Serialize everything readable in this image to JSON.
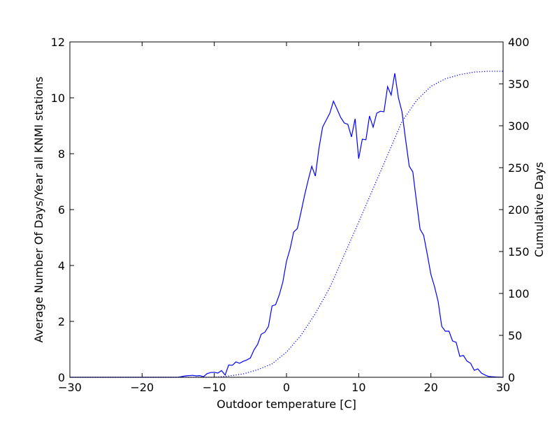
{
  "chart_data": {
    "type": "line",
    "xlabel": "Outdoor temperature [C]",
    "ylabel_left": "Average Number Of Days/Year all KNMI stations",
    "ylabel_right": "Cumulative Days",
    "xlim": [
      -30,
      30
    ],
    "ylim_left": [
      0,
      12
    ],
    "ylim_right": [
      0,
      400
    ],
    "xticks": [
      -30,
      -20,
      -10,
      0,
      10,
      20,
      30
    ],
    "yticks_left": [
      0,
      2,
      4,
      6,
      8,
      10,
      12
    ],
    "yticks_right": [
      0,
      50,
      100,
      150,
      200,
      250,
      300,
      350,
      400
    ],
    "grid": false,
    "legend": "none",
    "series": [
      {
        "axis": "left",
        "style": "solid",
        "color": "#0000ff",
        "x": [
          -30,
          -15,
          -14,
          -13,
          -12.5,
          -12,
          -11.5,
          -11,
          -10.5,
          -10,
          -9.5,
          -9,
          -8.5,
          -8,
          -7.5,
          -7,
          -6.5,
          -6,
          -5.5,
          -5,
          -4.5,
          -4,
          -3.5,
          -3,
          -2.5,
          -2,
          -1.5,
          -1,
          -0.5,
          0,
          0.5,
          1,
          1.5,
          2,
          2.5,
          3,
          3.5,
          4,
          4.5,
          5,
          5.5,
          6,
          6.5,
          7,
          7.5,
          8,
          8.5,
          9,
          9.5,
          10,
          10.5,
          11,
          11.5,
          12,
          12.5,
          13,
          13.5,
          14,
          14.5,
          15,
          15.5,
          16,
          16.5,
          17,
          17.5,
          18,
          18.5,
          19,
          19.5,
          20,
          20.5,
          21,
          21.5,
          22,
          22.5,
          23,
          23.5,
          24,
          24.5,
          25,
          25.5,
          26,
          26.5,
          27,
          27.5,
          28,
          28.5,
          29,
          30
        ],
        "values": [
          0,
          0,
          0.05,
          0.07,
          0.05,
          0.06,
          0.02,
          0.13,
          0.17,
          0.18,
          0.15,
          0.24,
          0.08,
          0.44,
          0.43,
          0.55,
          0.5,
          0.57,
          0.62,
          0.69,
          0.98,
          1.18,
          1.54,
          1.61,
          1.82,
          2.55,
          2.6,
          2.95,
          3.41,
          4.15,
          4.6,
          5.2,
          5.32,
          5.9,
          6.5,
          7.05,
          7.55,
          7.2,
          8.2,
          8.95,
          9.2,
          9.45,
          9.88,
          9.6,
          9.3,
          9.1,
          9.05,
          8.6,
          9.25,
          7.82,
          8.52,
          8.5,
          9.35,
          8.95,
          9.45,
          9.52,
          9.5,
          10.4,
          10.1,
          10.88,
          10.0,
          9.5,
          8.5,
          7.55,
          7.35,
          6.3,
          5.3,
          5.08,
          4.4,
          3.68,
          3.25,
          2.72,
          1.82,
          1.65,
          1.65,
          1.3,
          1.25,
          0.75,
          0.78,
          0.58,
          0.5,
          0.25,
          0.3,
          0.15,
          0.08,
          0.03,
          0.02,
          0.01,
          0
        ]
      },
      {
        "axis": "right",
        "style": "dotted",
        "color": "#0000ff",
        "x": [
          -30,
          -10,
          -8,
          -6,
          -4,
          -2,
          0,
          2,
          4,
          6,
          8,
          10,
          12,
          14,
          16,
          18,
          20,
          22,
          24,
          26,
          28,
          30
        ],
        "values": [
          0,
          0,
          1.5,
          4,
          9,
          16,
          30,
          50,
          76,
          107,
          146,
          185,
          225,
          265,
          305,
          330,
          347,
          356,
          361,
          364,
          365,
          365
        ]
      }
    ]
  }
}
